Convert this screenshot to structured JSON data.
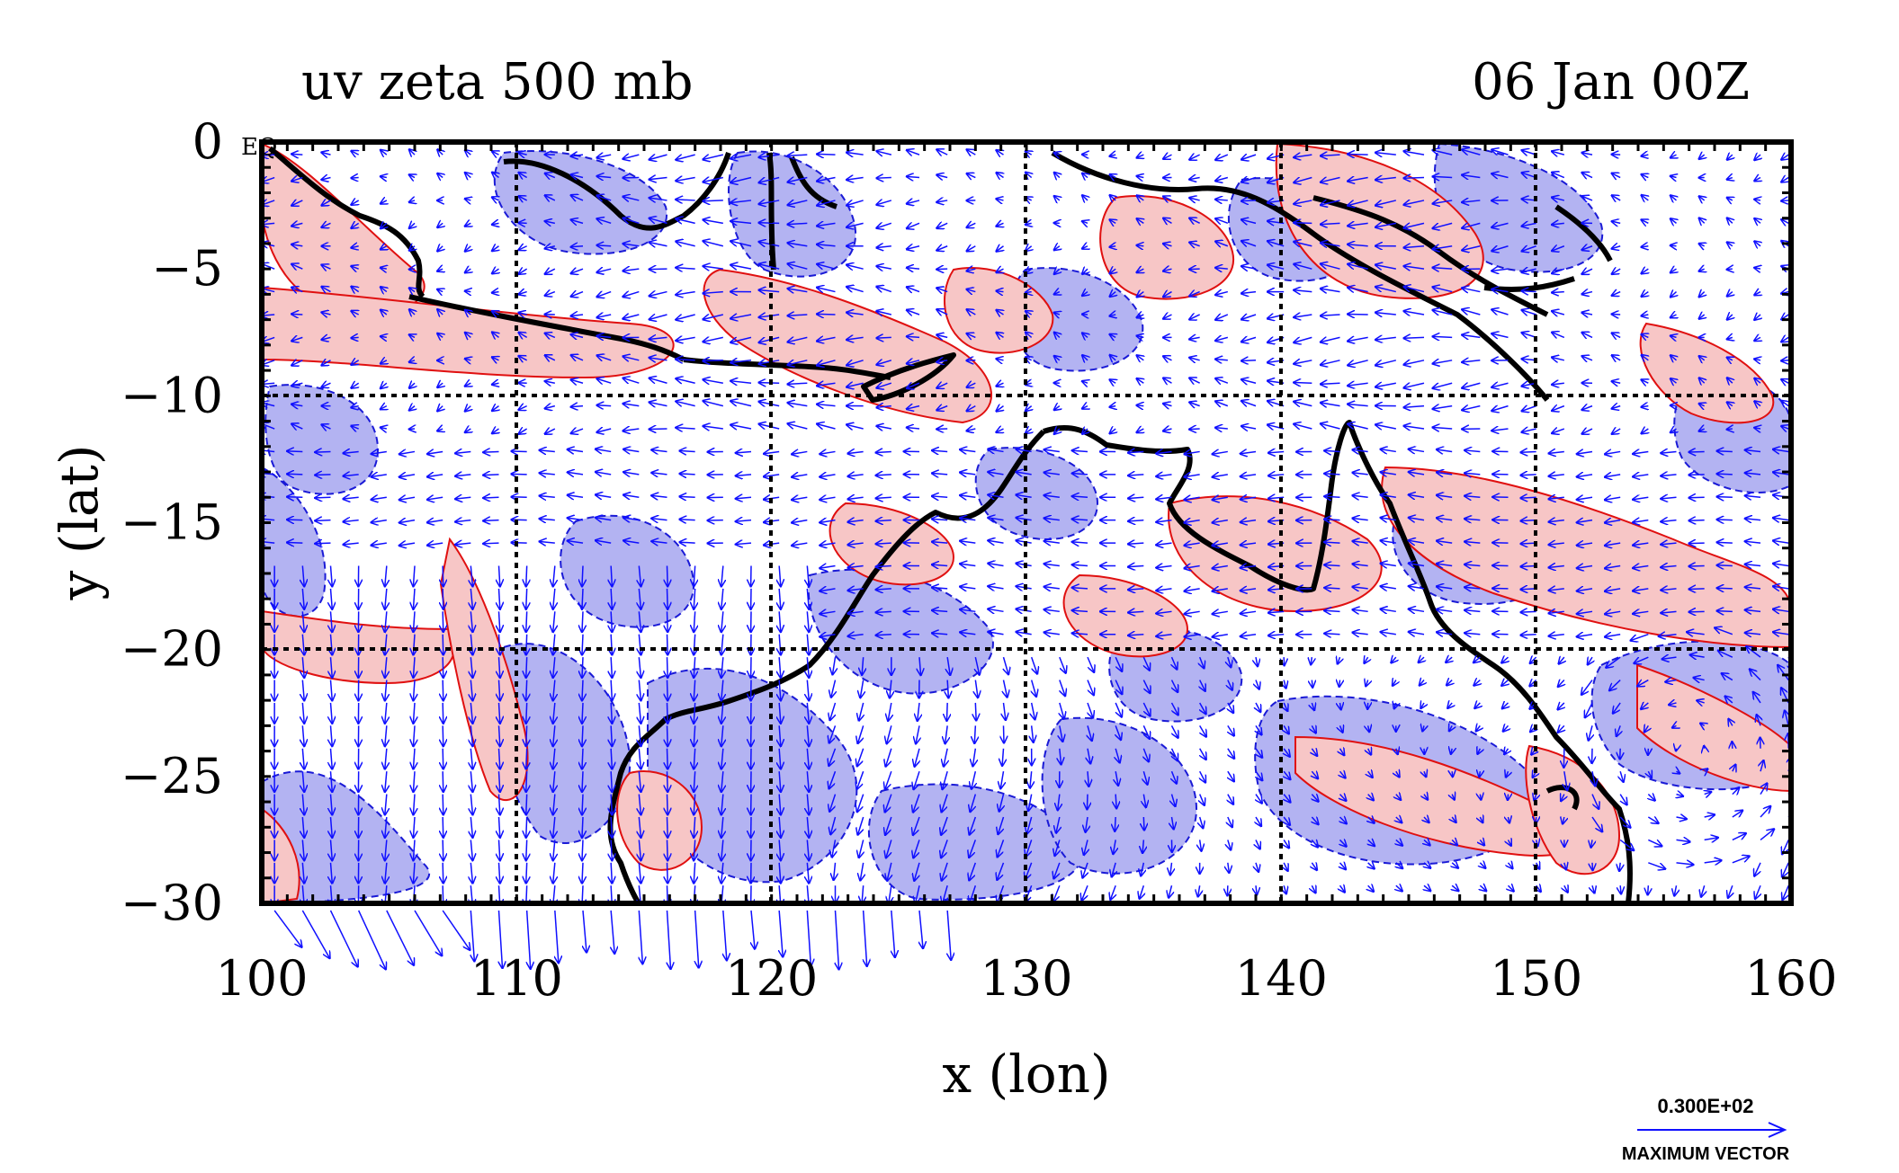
{
  "header": {
    "left_title": "uv zeta 500 mb",
    "right_title": "06 Jan 00Z"
  },
  "x_axis": {
    "label": "x (lon)",
    "ticks": [
      "100",
      "110",
      "120",
      "130",
      "140",
      "150",
      "160"
    ],
    "range": [
      100,
      160
    ]
  },
  "y_axis": {
    "label": "y (lat)",
    "ticks": [
      "0",
      "−5",
      "−10",
      "−15",
      "−20",
      "−25",
      "−30"
    ],
    "range": [
      -30,
      0
    ]
  },
  "corner_label": "EQ",
  "legend": {
    "vector_value": "0.300E+02",
    "vector_caption": "MAXIMUM VECTOR"
  },
  "colors": {
    "positive_shade": "#f7c6c6",
    "positive_contour": "#e01010",
    "negative_shade": "#b3b3f2",
    "negative_contour": "#1a1ad6",
    "vector": "#1010ff",
    "coast": "#000000",
    "grid": "#000000"
  },
  "chart_data": {
    "type": "map",
    "fields": [
      "wind vectors (u,v)",
      "relative vorticity (zeta)"
    ],
    "level": "500 mb",
    "valid_time": "06 Jan 00Z",
    "lon_range": [
      100,
      160
    ],
    "lat_range": [
      -30,
      0
    ],
    "grid_lines": {
      "lon": [
        110,
        120,
        130,
        140,
        150
      ],
      "lat": [
        -10,
        -20
      ]
    },
    "grid": "dashed"
  }
}
